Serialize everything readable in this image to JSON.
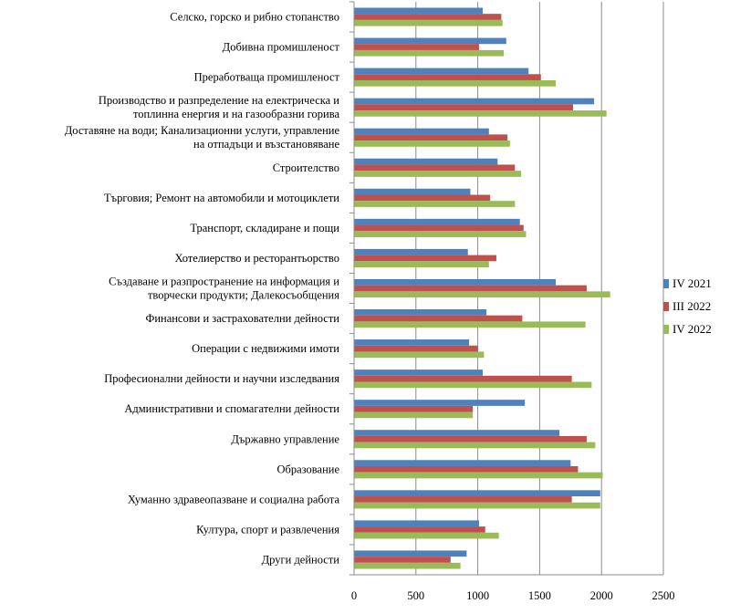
{
  "chart_data": {
    "type": "bar",
    "orientation": "horizontal",
    "categories": [
      [
        "Селско, горско и рибно стопанство"
      ],
      [
        "Добивна промишленост"
      ],
      [
        "Преработваща промишленост"
      ],
      [
        "Производство и разпределение  на електрическа  и",
        "топлинна енергия и на газообразни горива"
      ],
      [
        "Доставяне на води; Канализационни  услуги, управление",
        "на отпадъци  и възстановяване"
      ],
      [
        "Строителство"
      ],
      [
        "Търговия; Ремонт на автомобили и мотоциклети"
      ],
      [
        "Транспорт, складиране  и пощи"
      ],
      [
        "Хотелиерство и ресторантьорство"
      ],
      [
        "Създаване и разпространение  на информация и",
        "творчески продукти; Далекосъобщения"
      ],
      [
        "Финансови и застрахователни дейности"
      ],
      [
        "Операции с недвижими имоти"
      ],
      [
        "Професионални дейности и научни изследвания"
      ],
      [
        "Административни  и спомагателни дейности"
      ],
      [
        "Държавно управление"
      ],
      [
        "Образование"
      ],
      [
        "Хуманно здравеопазване  и социална  работа"
      ],
      [
        "Култура, спорт и развлечения"
      ],
      [
        "Други дейности"
      ]
    ],
    "series": [
      {
        "name": "IV 2021",
        "color": "#4F81BD",
        "values": [
          1040,
          1230,
          1410,
          1940,
          1090,
          1160,
          940,
          1340,
          920,
          1630,
          1070,
          930,
          1040,
          1380,
          1660,
          1750,
          1990,
          1010,
          910
        ]
      },
      {
        "name": "III 2022",
        "color": "#C0504D",
        "values": [
          1190,
          1010,
          1510,
          1770,
          1240,
          1300,
          1100,
          1370,
          1150,
          1880,
          1360,
          1000,
          1760,
          960,
          1880,
          1810,
          1760,
          1060,
          780
        ]
      },
      {
        "name": "IV 2022",
        "color": "#9BBB59",
        "values": [
          1200,
          1210,
          1630,
          2040,
          1260,
          1350,
          1300,
          1390,
          1090,
          2070,
          1870,
          1050,
          1920,
          960,
          1950,
          2010,
          1990,
          1170,
          860
        ]
      }
    ],
    "xlim": [
      0,
      2500
    ],
    "xticks": [
      "0",
      "500",
      "1000",
      "1500",
      "2000",
      "2500"
    ],
    "title": "",
    "xlabel": "",
    "ylabel": "",
    "grid": "vertical",
    "legend_position": "right"
  }
}
